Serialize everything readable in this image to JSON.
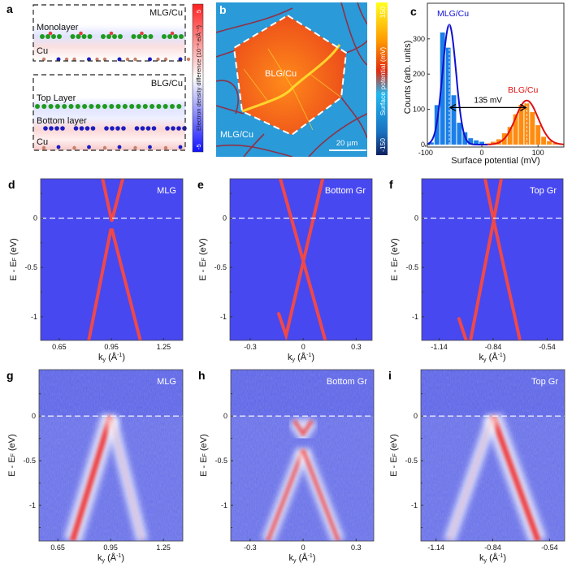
{
  "panel_letters": [
    "a",
    "b",
    "c",
    "d",
    "e",
    "f",
    "g",
    "h",
    "i"
  ],
  "panel_a": {
    "top_title": "MLG/Cu",
    "top_labels": [
      "Monolayer",
      "Cu"
    ],
    "bottom_title": "BLG/Cu",
    "bottom_labels": [
      "Top Layer",
      "Bottom layer",
      "Cu"
    ],
    "colorbar": {
      "label": "Electron density difference (10⁻³ e/Å⁻³)",
      "max": "5",
      "min": "-5",
      "colors": [
        "#ff2020",
        "#ffffff",
        "#1010ff"
      ]
    },
    "atom_colors": {
      "carbon_top": "#1f9a1f",
      "carbon_bottom": "#1c1cc0",
      "copper": "#c8806a"
    }
  },
  "panel_b": {
    "region_labels": [
      "BLG/Cu",
      "MLG/Cu"
    ],
    "scale_bar": "20 µm",
    "colorbar": {
      "label": "Surface potential (mV)",
      "max": "150",
      "min": "-150",
      "colors": [
        "#ffff20",
        "#ff9a00",
        "#e02a10",
        "#20b8f0",
        "#102060"
      ]
    }
  },
  "units": {
    "energy": "E - E",
    "energy_sub": "F",
    "energy_unit": " (eV)",
    "k": "k",
    "k_sub": "y",
    "k_unit": " (Å",
    "k_sup": "-1",
    "k_close": ")"
  },
  "chart_data": [
    {
      "panel": "c",
      "type": "bar",
      "xlabel": "Surface potential (mV)",
      "ylabel": "Counts (arb. units)",
      "xlim": [
        -97,
        146
      ],
      "ylim": [
        -7,
        401
      ],
      "xticks": [
        "-100",
        "0",
        "100"
      ],
      "yticks": [
        "0",
        "100",
        "200",
        "300"
      ],
      "bin_width": 10,
      "series": [
        {
          "name": "MLG/Cu",
          "color": "#1a7fe8",
          "fit_color": "#1010d0",
          "bins": [
            -90,
            -80,
            -70,
            -60,
            -50,
            -40,
            -30,
            -20,
            -10,
            0
          ],
          "values": [
            6,
            112,
            318,
            275,
            140,
            62,
            35,
            18,
            12,
            8
          ],
          "fit": {
            "center": -58,
            "amplitude": 340,
            "sigma": 12
          }
        },
        {
          "name": "BLG/Cu",
          "color": "#ff8c10",
          "fit_color": "#e01010",
          "bins": [
            10,
            20,
            30,
            40,
            50,
            60,
            70,
            80,
            90,
            100,
            110,
            120,
            130
          ],
          "values": [
            3,
            8,
            15,
            32,
            50,
            86,
            113,
            117,
            92,
            55,
            22,
            10,
            4
          ],
          "fit": {
            "center": 80,
            "amplitude": 125,
            "sigma": 20
          }
        }
      ],
      "annotation": "135 mV"
    },
    {
      "panel": "d",
      "type": "line",
      "title": "MLG",
      "xlim": [
        0.543,
        1.36
      ],
      "ylim": [
        -1.24,
        0.4
      ],
      "xticks": [
        0.65,
        0.95,
        1.25
      ],
      "yticks": [
        0,
        -0.5,
        -1
      ],
      "fermi_level": 0,
      "band_color": "#f04848",
      "background": "#4848f0",
      "bands": [
        [
          [
            0.899,
            0.4
          ],
          [
            0.95,
            -0.02
          ]
        ],
        [
          [
            1.015,
            0.4
          ],
          [
            0.953,
            -0.02
          ]
        ],
        [
          [
            0.946,
            -0.12
          ],
          [
            0.82,
            -1.24
          ]
        ],
        [
          [
            0.954,
            -0.12
          ],
          [
            1.116,
            -1.24
          ]
        ]
      ]
    },
    {
      "panel": "e",
      "type": "line",
      "title": "Bottom Gr",
      "xlim": [
        -0.415,
        0.39
      ],
      "ylim": [
        -1.24,
        0.4
      ],
      "xticks": [
        -0.3,
        0,
        0.3
      ],
      "yticks": [
        0,
        -0.5,
        -1
      ],
      "fermi_level": 0,
      "band_color": "#f04848",
      "background": "#4848f0",
      "bands": [
        [
          [
            -0.13,
            0.4
          ],
          [
            0.125,
            -1.24
          ]
        ],
        [
          [
            0.11,
            0.4
          ],
          [
            -0.097,
            -1.19
          ],
          [
            -0.139,
            -0.97
          ]
        ]
      ]
    },
    {
      "panel": "f",
      "type": "line",
      "title": "Top Gr",
      "xlim": [
        -1.237,
        -0.452
      ],
      "ylim": [
        -1.24,
        0.4
      ],
      "xticks": [
        -1.14,
        -0.84,
        -0.54
      ],
      "yticks": [
        0,
        -0.5,
        -1
      ],
      "fermi_level": 0,
      "band_color": "#f04848",
      "background": "#4848f0",
      "bands": [
        [
          [
            -0.885,
            0.4
          ],
          [
            -0.84,
            0
          ],
          [
            -0.691,
            -1.24
          ]
        ],
        [
          [
            -0.795,
            0.4
          ],
          [
            -0.84,
            -0.05
          ],
          [
            -0.966,
            -1.24
          ]
        ],
        [
          [
            -1.03,
            -1.02
          ],
          [
            -0.99,
            -1.24
          ]
        ]
      ]
    },
    {
      "panel": "g",
      "type": "heatmap",
      "title": "MLG",
      "xlim": [
        0.543,
        1.36
      ],
      "ylim": [
        -1.4,
        0.52
      ],
      "xticks": [
        0.65,
        0.95,
        1.25
      ],
      "yticks": [
        0,
        -0.5,
        -1
      ],
      "fermi_level": 0,
      "background": "#5a62e6",
      "dispersion": [
        {
          "points": [
            [
              0.95,
              0
            ],
            [
              0.733,
              -1.4
            ]
          ],
          "intensity": "strong"
        },
        {
          "points": [
            [
              0.95,
              0
            ],
            [
              1.13,
              -1.4
            ]
          ],
          "intensity": "weak"
        }
      ]
    },
    {
      "panel": "h",
      "type": "heatmap",
      "title": "Bottom Gr",
      "xlim": [
        -0.41,
        0.4
      ],
      "ylim": [
        -1.4,
        0.52
      ],
      "xticks": [
        -0.3,
        0,
        0.3
      ],
      "yticks": [
        0,
        -0.5,
        -1
      ],
      "fermi_level": 0,
      "background": "#5a62e6",
      "dispersion": [
        {
          "points": [
            [
              -0.05,
              -0.05
            ],
            [
              0,
              -0.2
            ],
            [
              0.05,
              -0.05
            ]
          ],
          "intensity": "medium"
        },
        {
          "points": [
            [
              0,
              -0.38
            ],
            [
              -0.2,
              -1.4
            ]
          ],
          "intensity": "medium"
        },
        {
          "points": [
            [
              0,
              -0.38
            ],
            [
              0.2,
              -1.4
            ]
          ],
          "intensity": "medium"
        }
      ]
    },
    {
      "panel": "i",
      "type": "heatmap",
      "title": "Top Gr",
      "xlim": [
        -1.22,
        -0.46
      ],
      "ylim": [
        -1.4,
        0.52
      ],
      "xticks": [
        -1.14,
        -0.84,
        -0.54
      ],
      "yticks": [
        0,
        -0.5,
        -1
      ],
      "fermi_level": 0,
      "background": "#5a62e6",
      "dispersion": [
        {
          "points": [
            [
              -0.84,
              0
            ],
            [
              -0.6,
              -1.4
            ]
          ],
          "intensity": "strong"
        },
        {
          "points": [
            [
              -0.84,
              0
            ],
            [
              -1.07,
              -1.4
            ]
          ],
          "intensity": "weak"
        }
      ]
    }
  ]
}
